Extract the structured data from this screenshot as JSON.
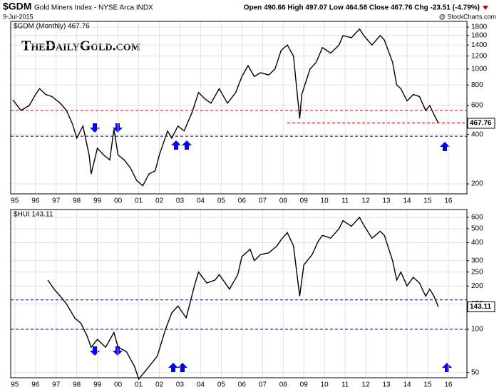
{
  "header": {
    "symbol": "$GDM",
    "name": "Gold Miners Index - NYSE Arca INDX",
    "date": "9-Jul-2015",
    "quote": "Open 490.66  High 497.07  Low 464.58  Close 467.76  Chg -23.51 (-4.79%)",
    "credit": "@ StockCharts.com",
    "watermark": "TheDailyGold.com"
  },
  "chart_data": [
    {
      "type": "line",
      "log_scale": true,
      "grid": true,
      "x": [
        1994.9,
        1995.3,
        1995.7,
        1996.0,
        1996.2,
        1996.5,
        1996.8,
        1997.2,
        1997.5,
        1997.8,
        1998.0,
        1998.3,
        1998.6,
        1998.7,
        1999.0,
        1999.3,
        1999.6,
        1999.8,
        2000.0,
        2000.3,
        2000.6,
        2000.9,
        2001.2,
        2001.5,
        2001.8,
        2002.0,
        2002.4,
        2002.6,
        2002.9,
        2003.2,
        2003.6,
        2003.9,
        2004.2,
        2004.5,
        2004.9,
        2005.3,
        2005.7,
        2006.0,
        2006.3,
        2006.6,
        2006.9,
        2007.3,
        2007.6,
        2007.9,
        2008.2,
        2008.5,
        2008.8,
        2008.9,
        2009.3,
        2009.6,
        2009.9,
        2010.3,
        2010.7,
        2010.9,
        2011.3,
        2011.7,
        2011.9,
        2012.3,
        2012.7,
        2012.9,
        2013.3,
        2013.5,
        2013.7,
        2014.0,
        2014.3,
        2014.6,
        2014.9,
        2015.1,
        2015.3,
        2015.52
      ],
      "series": [
        {
          "name": "$GDM (Monthly) 467.76",
          "color": "#000000",
          "values": [
            650,
            560,
            600,
            700,
            760,
            700,
            680,
            620,
            560,
            460,
            380,
            450,
            300,
            230,
            330,
            300,
            280,
            430,
            300,
            280,
            250,
            210,
            195,
            230,
            240,
            300,
            420,
            380,
            450,
            420,
            550,
            720,
            660,
            620,
            760,
            620,
            720,
            900,
            1050,
            900,
            950,
            920,
            1000,
            1300,
            1400,
            1200,
            500,
            700,
            1000,
            1100,
            1350,
            1250,
            1400,
            1600,
            1550,
            1750,
            1600,
            1400,
            1600,
            1500,
            1100,
            800,
            760,
            640,
            700,
            680,
            560,
            600,
            530,
            467.76
          ]
        }
      ],
      "hlines": [
        {
          "value": 560,
          "color": "#c00000"
        },
        {
          "value": 470,
          "color": "#c00000",
          "start": 2008.2
        },
        {
          "value": 390,
          "color": "#00008b"
        }
      ],
      "xlim": [
        1994.8,
        2016.9
      ],
      "xticks": [
        {
          "value": 1995,
          "label": "95"
        },
        {
          "value": 1996,
          "label": "96"
        },
        {
          "value": 1997,
          "label": "97"
        },
        {
          "value": 1998,
          "label": "98"
        },
        {
          "value": 1999,
          "label": "99"
        },
        {
          "value": 2000,
          "label": "00"
        },
        {
          "value": 2001,
          "label": "01"
        },
        {
          "value": 2002,
          "label": "02"
        },
        {
          "value": 2003,
          "label": "03"
        },
        {
          "value": 2004,
          "label": "04"
        },
        {
          "value": 2005,
          "label": "05"
        },
        {
          "value": 2006,
          "label": "06"
        },
        {
          "value": 2007,
          "label": "07"
        },
        {
          "value": 2008,
          "label": "08"
        },
        {
          "value": 2009,
          "label": "09"
        },
        {
          "value": 2010,
          "label": "10"
        },
        {
          "value": 2011,
          "label": "11"
        },
        {
          "value": 2012,
          "label": "12"
        },
        {
          "value": 2013,
          "label": "13"
        },
        {
          "value": 2014,
          "label": "14"
        },
        {
          "value": 2015,
          "label": "15"
        },
        {
          "value": 2016,
          "label": "16"
        }
      ],
      "ylim": [
        174,
        1950
      ],
      "yticks": [
        200,
        400,
        600,
        800,
        1000,
        1200,
        1400,
        1600,
        1800
      ]
    },
    {
      "type": "line",
      "log_scale": true,
      "grid": true,
      "x": [
        1996.6,
        1996.9,
        1997.2,
        1997.5,
        1997.9,
        1998.2,
        1998.5,
        1998.7,
        1999.0,
        1999.4,
        1999.8,
        2000.0,
        2000.4,
        2000.8,
        2001.0,
        2001.5,
        2001.9,
        2002.3,
        2002.6,
        2002.9,
        2003.3,
        2003.7,
        2003.9,
        2004.3,
        2004.7,
        2004.9,
        2005.4,
        2005.8,
        2006.0,
        2006.4,
        2006.6,
        2006.9,
        2007.3,
        2007.7,
        2007.9,
        2008.2,
        2008.5,
        2008.8,
        2009.0,
        2009.4,
        2009.7,
        2009.9,
        2010.3,
        2010.7,
        2010.9,
        2011.3,
        2011.7,
        2011.9,
        2012.3,
        2012.7,
        2012.9,
        2013.3,
        2013.5,
        2013.7,
        2014.0,
        2014.3,
        2014.6,
        2014.9,
        2015.1,
        2015.3,
        2015.52
      ],
      "series": [
        {
          "name": "$HUI 143.11",
          "color": "#000000",
          "values": [
            220,
            190,
            170,
            150,
            120,
            110,
            90,
            75,
            85,
            75,
            95,
            75,
            70,
            55,
            45,
            55,
            65,
            100,
            130,
            145,
            120,
            200,
            250,
            210,
            220,
            240,
            190,
            240,
            320,
            360,
            300,
            330,
            340,
            380,
            420,
            470,
            380,
            170,
            280,
            330,
            410,
            450,
            430,
            500,
            570,
            520,
            600,
            530,
            430,
            480,
            450,
            300,
            220,
            250,
            200,
            230,
            210,
            170,
            190,
            170,
            143.11
          ]
        }
      ],
      "hlines": [
        {
          "value": 160,
          "color": "#00008b"
        },
        {
          "value": 100,
          "color": "#00008b"
        }
      ],
      "xlim": [
        1994.8,
        2016.9
      ],
      "xticks": [
        {
          "value": 1995,
          "label": "95"
        },
        {
          "value": 1996,
          "label": "96"
        },
        {
          "value": 1997,
          "label": "97"
        },
        {
          "value": 1998,
          "label": "98"
        },
        {
          "value": 1999,
          "label": "99"
        },
        {
          "value": 2000,
          "label": "00"
        },
        {
          "value": 2001,
          "label": "01"
        },
        {
          "value": 2002,
          "label": "02"
        },
        {
          "value": 2003,
          "label": "03"
        },
        {
          "value": 2004,
          "label": "04"
        },
        {
          "value": 2005,
          "label": "05"
        },
        {
          "value": 2006,
          "label": "06"
        },
        {
          "value": 2007,
          "label": "07"
        },
        {
          "value": 2008,
          "label": "08"
        },
        {
          "value": 2009,
          "label": "09"
        },
        {
          "value": 2010,
          "label": "10"
        },
        {
          "value": 2011,
          "label": "11"
        },
        {
          "value": 2012,
          "label": "12"
        },
        {
          "value": 2013,
          "label": "13"
        },
        {
          "value": 2014,
          "label": "14"
        },
        {
          "value": 2015,
          "label": "15"
        },
        {
          "value": 2016,
          "label": "16"
        }
      ],
      "ylim": [
        46,
        680
      ],
      "yticks": [
        50,
        100,
        150,
        200,
        250,
        300,
        400,
        500,
        600
      ]
    }
  ]
}
